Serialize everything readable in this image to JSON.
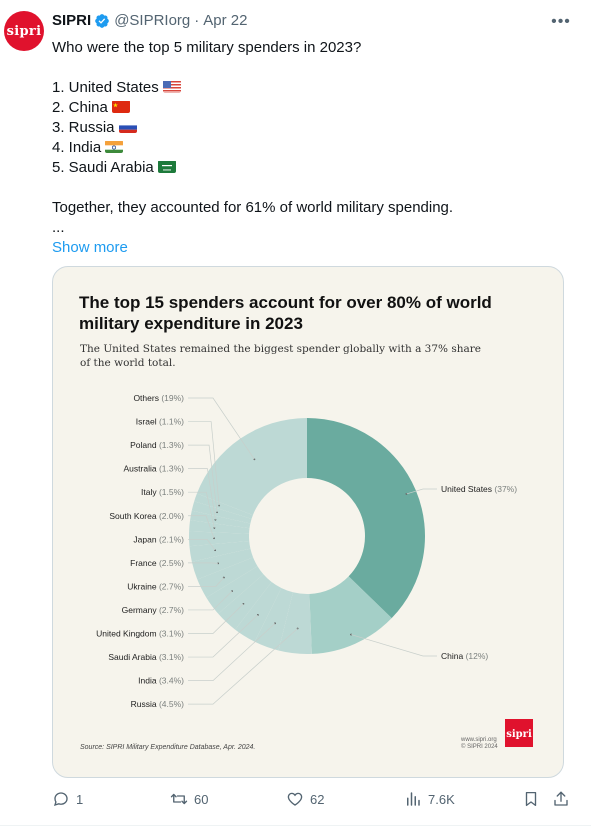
{
  "post": {
    "author_name": "SIPRI",
    "author_handle": "@SIPRIorg",
    "separator": "·",
    "date": "Apr 22",
    "avatar_text": "sipri",
    "lines": [
      "Who were the top 5 military spenders in 2023?",
      "",
      "1. United States",
      "2. China",
      "3. Russia",
      "4. India",
      "5. Saudi Arabia",
      "",
      "Together, they accounted for 61% of world military spending.",
      "..."
    ],
    "show_more": "Show more"
  },
  "card": {
    "title_line1": "The top 15 spenders account for over 80% of world",
    "title_line2": "military expenditure in 2023",
    "subtitle_line1": "The United States remained the biggest spender globally with a 37% share",
    "subtitle_line2": "of the world total.",
    "source": "Source: SIPRI Military Expenditure Database, Apr. 2024.",
    "footer_url": "www.sipri.org",
    "footer_copy": "© SIPRI 2024",
    "logo_text": "sipri"
  },
  "chart_data": {
    "type": "pie",
    "donut": true,
    "unit": "%",
    "slices": [
      {
        "label": "United States",
        "value_text": "(37%)",
        "value": 37
      },
      {
        "label": "China",
        "value_text": "(12%)",
        "value": 12
      },
      {
        "label": "Russia",
        "value_text": "(4.5%)",
        "value": 4.5
      },
      {
        "label": "India",
        "value_text": "(3.4%)",
        "value": 3.4
      },
      {
        "label": "Saudi Arabia",
        "value_text": "(3.1%)",
        "value": 3.1
      },
      {
        "label": "United Kingdom",
        "value_text": "(3.1%)",
        "value": 3.1
      },
      {
        "label": "Germany",
        "value_text": "(2.7%)",
        "value": 2.7
      },
      {
        "label": "Ukraine",
        "value_text": "(2.7%)",
        "value": 2.7
      },
      {
        "label": "France",
        "value_text": "(2.5%)",
        "value": 2.5
      },
      {
        "label": "Japan",
        "value_text": "(2.1%)",
        "value": 2.1
      },
      {
        "label": "South Korea",
        "value_text": "(2.0%)",
        "value": 2.0
      },
      {
        "label": "Italy",
        "value_text": "(1.5%)",
        "value": 1.5
      },
      {
        "label": "Australia",
        "value_text": "(1.3%)",
        "value": 1.3
      },
      {
        "label": "Poland",
        "value_text": "(1.3%)",
        "value": 1.3
      },
      {
        "label": "Israel",
        "value_text": "(1.1%)",
        "value": 1.1
      },
      {
        "label": "Others",
        "value_text": "(19%)",
        "value": 19
      }
    ],
    "colors": {
      "united_states": "#6aab9f",
      "china": "#a4cfc7",
      "others": "#bdd9d5",
      "background": "#f6f4ec"
    }
  },
  "actions": {
    "replies": "1",
    "reposts": "60",
    "likes": "62",
    "views": "7.6K"
  },
  "colors": {
    "accent": "#1d9bf0",
    "brand": "#e0122d",
    "muted": "#536471"
  }
}
